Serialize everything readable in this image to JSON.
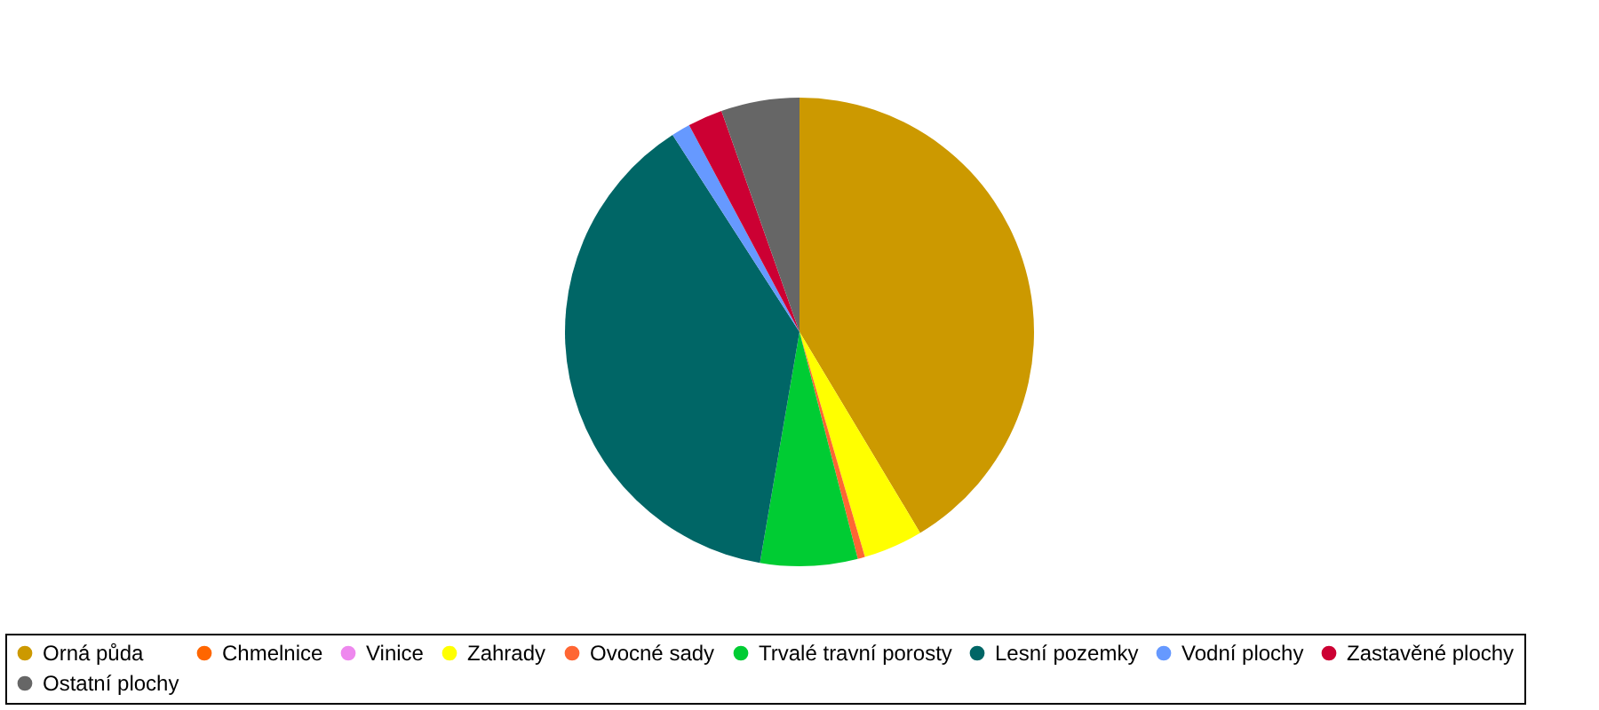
{
  "chart_data": {
    "type": "pie",
    "categories": [
      "Orná půda",
      "Chmelnice",
      "Vinice",
      "Zahrady",
      "Ovocné sady",
      "Trvalé travní porosty",
      "Lesní pozemky",
      "Vodní plochy",
      "Zastavěné plochy",
      "Ostatní plochy"
    ],
    "values": [
      41.4,
      0,
      0,
      4.1,
      0.5,
      6.7,
      38.2,
      1.3,
      2.4,
      5.4
    ],
    "colors": [
      "#cc9900",
      "#ff6600",
      "#ee88ee",
      "#ffff00",
      "#ff6633",
      "#00cc33",
      "#006666",
      "#6699ff",
      "#cc0033",
      "#666666"
    ],
    "legend": "bottom"
  }
}
